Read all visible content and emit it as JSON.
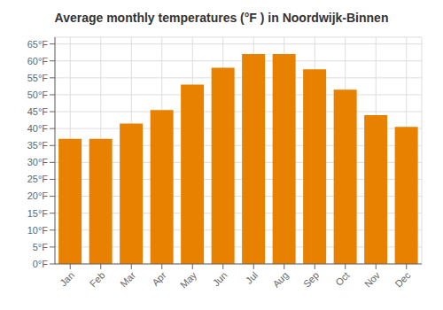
{
  "chart_data": {
    "type": "bar",
    "title": "Average monthly temperatures (°F ) in Noordwijk-Binnen",
    "categories": [
      "Jan",
      "Feb",
      "Mar",
      "Apr",
      "May",
      "Jun",
      "Jul",
      "Aug",
      "Sep",
      "Oct",
      "Nov",
      "Dec"
    ],
    "values": [
      37,
      37,
      41.5,
      45.5,
      53,
      58,
      62,
      62,
      57.5,
      51.5,
      44,
      40.5
    ],
    "color": "#E88000",
    "ylim": [
      0,
      67
    ],
    "yticks": [
      {
        "value": 0,
        "label": "0°F"
      },
      {
        "value": 5,
        "label": "5°F"
      },
      {
        "value": 10,
        "label": "10°F"
      },
      {
        "value": 15,
        "label": "15°F"
      },
      {
        "value": 20,
        "label": "20°F"
      },
      {
        "value": 25,
        "label": "25°F"
      },
      {
        "value": 30,
        "label": "30°F"
      },
      {
        "value": 35,
        "label": "35°F"
      },
      {
        "value": 40,
        "label": "40°F"
      },
      {
        "value": 45,
        "label": "45°F"
      },
      {
        "value": 50,
        "label": "50°F"
      },
      {
        "value": 55,
        "label": "55°F"
      },
      {
        "value": 60,
        "label": "60°F"
      },
      {
        "value": 65,
        "label": "65°F"
      }
    ],
    "grid": true
  }
}
